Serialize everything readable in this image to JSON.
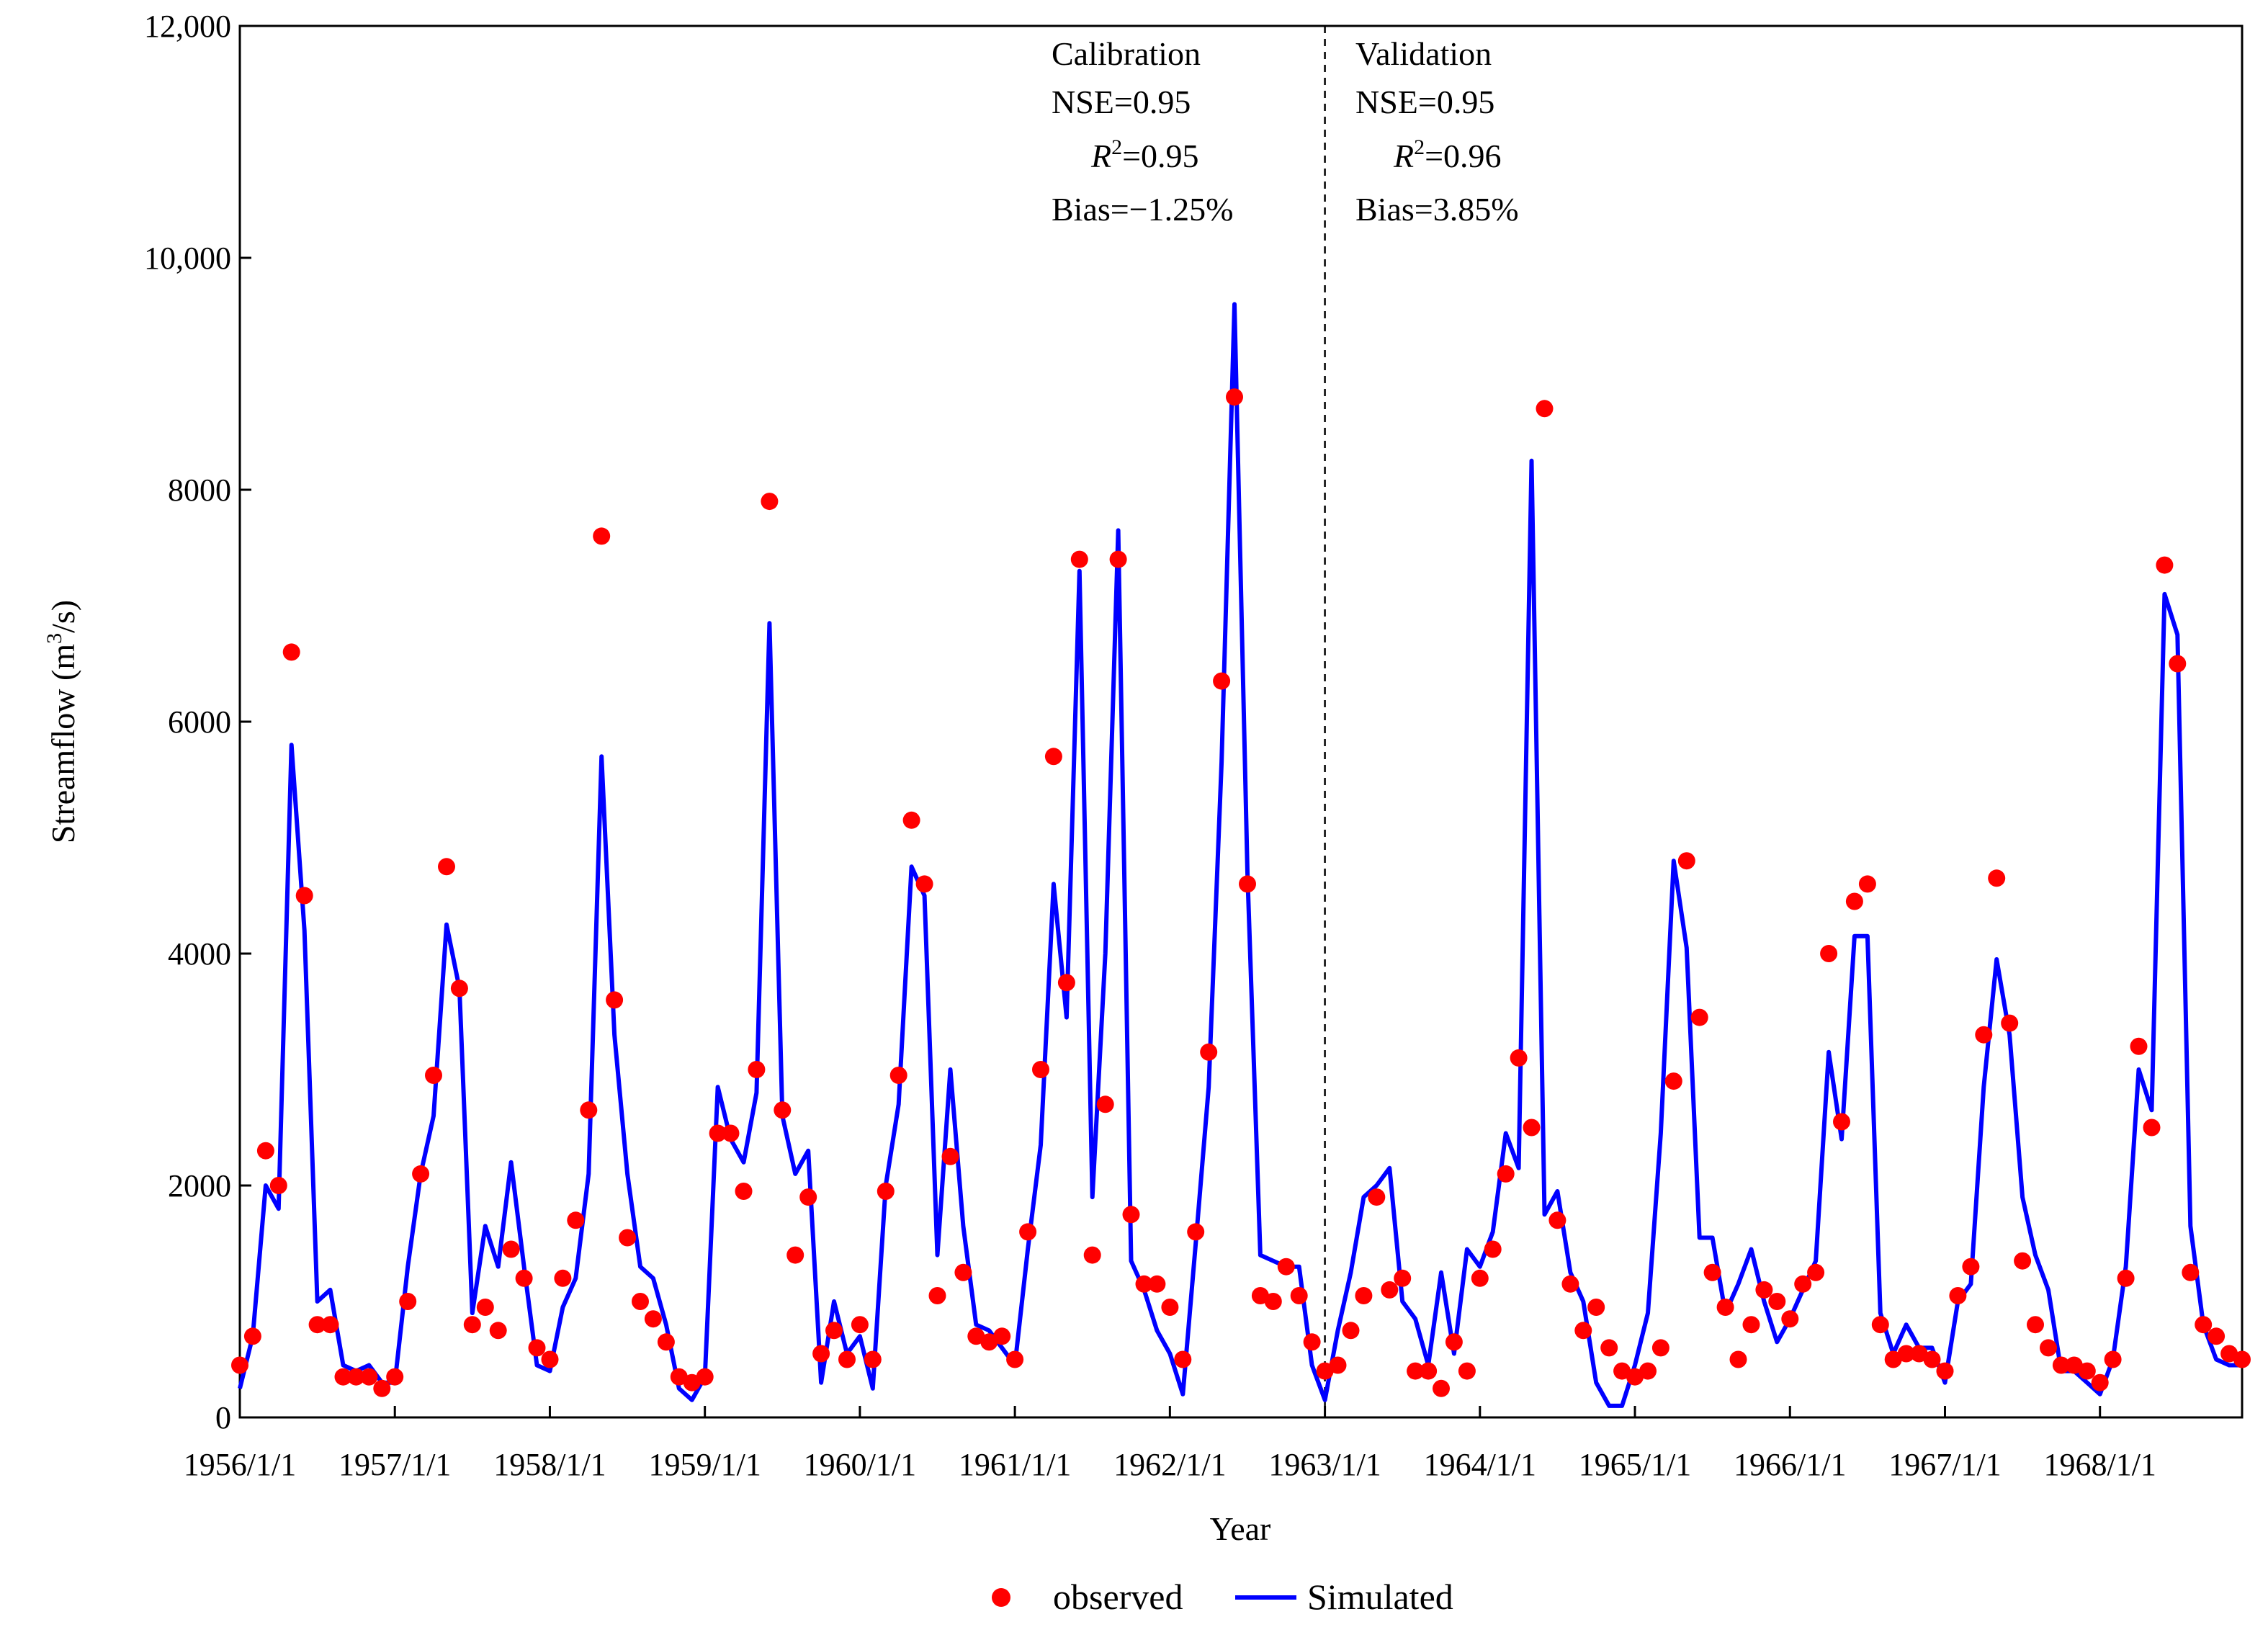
{
  "chart_data": {
    "type": "line",
    "title": "",
    "xlabel": "Year",
    "ylabel_base": "Streamflow (m",
    "ylabel_sup": "3",
    "ylabel_tail": "/s)",
    "ylim": [
      0,
      12000
    ],
    "yticks": [
      {
        "value": 0,
        "label": "0"
      },
      {
        "value": 2000,
        "label": "2000"
      },
      {
        "value": 4000,
        "label": "4000"
      },
      {
        "value": 6000,
        "label": "6000"
      },
      {
        "value": 8000,
        "label": "8000"
      },
      {
        "value": 10000,
        "label": "10,000"
      },
      {
        "value": 12000,
        "label": "12,000"
      }
    ],
    "xlim_months": [
      0,
      155
    ],
    "xticks": [
      {
        "month": 0,
        "label": "1956/1/1"
      },
      {
        "month": 12,
        "label": "1957/1/1"
      },
      {
        "month": 24,
        "label": "1958/1/1"
      },
      {
        "month": 36,
        "label": "1959/1/1"
      },
      {
        "month": 48,
        "label": "1960/1/1"
      },
      {
        "month": 60,
        "label": "1961/1/1"
      },
      {
        "month": 72,
        "label": "1962/1/1"
      },
      {
        "month": 84,
        "label": "1963/1/1"
      },
      {
        "month": 96,
        "label": "1964/1/1"
      },
      {
        "month": 108,
        "label": "1965/1/1"
      },
      {
        "month": 120,
        "label": "1966/1/1"
      },
      {
        "month": 132,
        "label": "1967/1/1"
      },
      {
        "month": 144,
        "label": "1968/1/1"
      }
    ],
    "divider_month": 84,
    "legend": {
      "position": "bottom-center",
      "observed_label": "observed",
      "simulated_label": "Simulated"
    },
    "colors": {
      "observed": "#ff0000",
      "simulated": "#0000ff",
      "axis": "#000000"
    },
    "calibration": {
      "title": "Calibration",
      "nse": "NSE=0.95",
      "r2_var": "R",
      "r2_sup": "2",
      "r2_val": "=0.95",
      "bias": "Bias=−1.25%"
    },
    "validation": {
      "title": "Validation",
      "nse": "NSE=0.95",
      "r2_var": "R",
      "r2_sup": "2",
      "r2_val": "=0.96",
      "bias": "Bias=3.85%"
    },
    "series": [
      {
        "name": "observed",
        "style": "points",
        "values": [
          450,
          700,
          2300,
          2000,
          6600,
          4500,
          800,
          800,
          350,
          350,
          350,
          250,
          350,
          1000,
          2100,
          2950,
          4750,
          3700,
          800,
          950,
          750,
          1450,
          1200,
          600,
          500,
          1200,
          1700,
          2650,
          7600,
          3600,
          1550,
          1000,
          850,
          650,
          350,
          300,
          350,
          2450,
          2450,
          1950,
          3000,
          7900,
          2650,
          1400,
          1900,
          550,
          750,
          500,
          800,
          500,
          1950,
          2950,
          5150,
          4600,
          1050,
          2250,
          1250,
          700,
          650,
          700,
          500,
          1600,
          3000,
          5700,
          3750,
          7400,
          1400,
          2700,
          7400,
          1750,
          1150,
          1150,
          950,
          500,
          1600,
          3150,
          6350,
          8800,
          4600,
          1050,
          1000,
          1300,
          1050,
          650,
          400,
          450,
          750,
          1050,
          1900,
          1100,
          1200,
          400,
          400,
          250,
          650,
          400,
          1200,
          1450,
          2100,
          3100,
          2500,
          8700,
          1700,
          1150,
          750,
          950,
          600,
          400,
          350,
          400,
          600,
          2900,
          4800,
          3450,
          1250,
          950,
          500,
          800,
          1100,
          1000,
          850,
          1150,
          1250,
          4000,
          2550,
          4450,
          4600,
          800,
          500,
          550,
          550,
          500,
          400,
          1050,
          1300,
          3300,
          4650,
          3400,
          1350,
          800,
          600,
          450,
          450,
          400,
          300,
          500,
          1200,
          3200,
          2500,
          7350,
          6500,
          1250,
          800,
          700,
          550,
          500
        ]
      },
      {
        "name": "Simulated",
        "style": "line",
        "values": [
          250,
          700,
          2000,
          1800,
          5800,
          4200,
          1000,
          1100,
          450,
          400,
          450,
          300,
          300,
          1300,
          2100,
          2600,
          4250,
          3700,
          900,
          1650,
          1300,
          2200,
          1300,
          450,
          400,
          950,
          1200,
          2100,
          5700,
          3300,
          2100,
          1300,
          1200,
          800,
          250,
          150,
          350,
          2850,
          2400,
          2200,
          2800,
          6850,
          2600,
          2100,
          2300,
          300,
          1000,
          550,
          700,
          250,
          2000,
          2700,
          4750,
          4500,
          1400,
          3000,
          1650,
          800,
          750,
          600,
          450,
          1450,
          2350,
          4600,
          3450,
          7300,
          1900,
          4000,
          7650,
          1350,
          1100,
          750,
          550,
          200,
          1500,
          2850,
          5650,
          9600,
          4700,
          1400,
          1350,
          1300,
          1300,
          450,
          150,
          750,
          1250,
          1900,
          2000,
          2150,
          1000,
          850,
          450,
          1250,
          550,
          1450,
          1300,
          1600,
          2450,
          2150,
          8250,
          1750,
          1950,
          1250,
          1000,
          300,
          100,
          100,
          450,
          900,
          2450,
          4800,
          4050,
          1550,
          1550,
          900,
          1150,
          1450,
          1000,
          650,
          850,
          1100,
          1350,
          3150,
          2400,
          4150,
          4150,
          900,
          550,
          800,
          600,
          600,
          300,
          1000,
          1150,
          2850,
          3950,
          3300,
          1900,
          1400,
          1100,
          400,
          400,
          300,
          200,
          500,
          1300,
          3000,
          2650,
          7100,
          6750,
          1650,
          800,
          500,
          450,
          450
        ]
      }
    ]
  }
}
